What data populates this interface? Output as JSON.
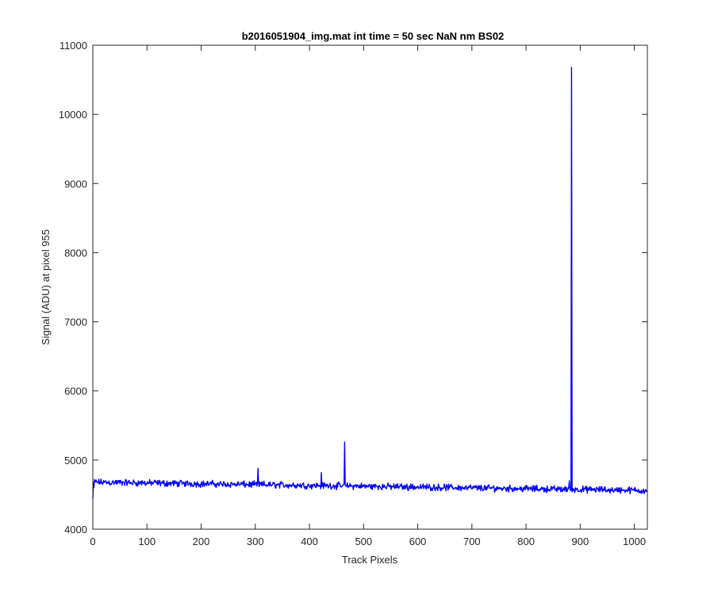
{
  "chart_data": {
    "type": "line",
    "title": "b2016051904_img.mat int time = 50 sec  NaN nm BS02",
    "xlabel": "Track Pixels",
    "ylabel": "Signal (ADU) at pixel 955",
    "xlim": [
      0,
      1024
    ],
    "ylim": [
      4000,
      11000
    ],
    "xticks": [
      0,
      100,
      200,
      300,
      400,
      500,
      600,
      700,
      800,
      900,
      1000
    ],
    "yticks": [
      4000,
      5000,
      6000,
      7000,
      8000,
      9000,
      10000,
      11000
    ],
    "xtick_labels": [
      "0",
      "100",
      "200",
      "300",
      "400",
      "500",
      "600",
      "700",
      "800",
      "900",
      "1000"
    ],
    "ytick_labels": [
      "4000",
      "5000",
      "6000",
      "7000",
      "8000",
      "9000",
      "10000",
      "11000"
    ],
    "grid": false,
    "legend": "none",
    "series": [
      {
        "color": "#0000ff",
        "baseline_start": 4680,
        "baseline_end": 4560,
        "noise_amplitude": 60,
        "points": [
          {
            "x": 0,
            "y": 4440
          },
          {
            "x": 2,
            "y": 4600
          },
          {
            "x": 305,
            "y": 4880
          },
          {
            "x": 422,
            "y": 4820
          },
          {
            "x": 463,
            "y": 4640
          },
          {
            "x": 465,
            "y": 5260
          },
          {
            "x": 467,
            "y": 4630
          },
          {
            "x": 880,
            "y": 4700
          },
          {
            "x": 882,
            "y": 4560
          },
          {
            "x": 884,
            "y": 10680
          },
          {
            "x": 886,
            "y": 4560
          },
          {
            "x": 1024,
            "y": 4560
          }
        ]
      }
    ]
  }
}
